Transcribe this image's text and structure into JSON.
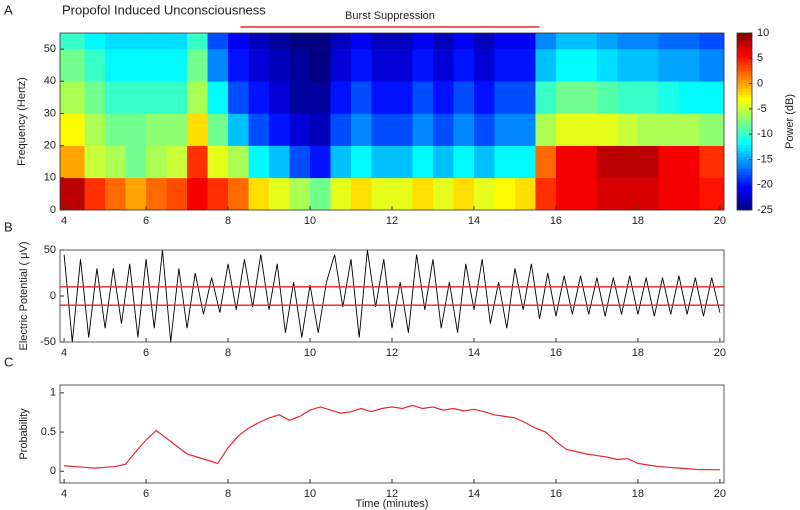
{
  "chart_data": [
    {
      "type": "heatmap",
      "panel_label": "A",
      "title": "Propofol Induced Unconsciousness",
      "annotation": {
        "text": "Burst Suppression",
        "x": [
          8.3,
          15.6
        ],
        "color": "#e8262b"
      },
      "ylabel": "Frequency (Hertz)",
      "xlim": [
        3.9,
        20.1
      ],
      "xticks": [
        4,
        6,
        8,
        10,
        12,
        14,
        16,
        18,
        20
      ],
      "ylim": [
        0,
        55
      ],
      "yticks": [
        0,
        10,
        20,
        30,
        40,
        50
      ],
      "colormap": "jet",
      "xbins": [
        3.9,
        4.5,
        5,
        5.5,
        6,
        6.5,
        7,
        7.5,
        8,
        8.5,
        9,
        9.5,
        10,
        10.5,
        11,
        11.5,
        12,
        12.5,
        13,
        13.5,
        14,
        14.5,
        15,
        15.5,
        16,
        16.5,
        17,
        17.5,
        18,
        18.5,
        19,
        19.5,
        20.1
      ],
      "ybins": [
        0,
        10,
        20,
        30,
        40,
        50,
        55
      ],
      "z": [
        [
          8,
          4,
          2,
          0,
          2,
          3,
          6,
          4,
          2,
          -2,
          -4,
          -6,
          -8,
          -4,
          -2,
          -4,
          -4,
          -2,
          -4,
          -2,
          -4,
          -3,
          -2,
          4,
          6,
          6,
          7,
          7,
          7,
          6,
          6,
          5
        ],
        [
          0,
          -5,
          -6,
          -8,
          -6,
          -5,
          4,
          -4,
          -6,
          -12,
          -14,
          -18,
          -20,
          -14,
          -12,
          -14,
          -14,
          -12,
          -14,
          -12,
          -14,
          -12,
          -12,
          2,
          6,
          6,
          8,
          8,
          8,
          6,
          6,
          4
        ],
        [
          -3,
          -6,
          -8,
          -8,
          -7,
          -7,
          -2,
          -8,
          -14,
          -18,
          -20,
          -22,
          -23,
          -18,
          -16,
          -18,
          -18,
          -16,
          -18,
          -16,
          -18,
          -16,
          -16,
          -6,
          -4,
          -4,
          -4,
          -5,
          -6,
          -6,
          -6,
          -7
        ],
        [
          -6,
          -8,
          -10,
          -10,
          -10,
          -10,
          -6,
          -12,
          -18,
          -20,
          -22,
          -24,
          -24,
          -20,
          -18,
          -20,
          -20,
          -18,
          -20,
          -18,
          -20,
          -18,
          -18,
          -10,
          -8,
          -8,
          -9,
          -10,
          -10,
          -11,
          -12,
          -12
        ],
        [
          -8,
          -10,
          -12,
          -12,
          -12,
          -12,
          -8,
          -16,
          -20,
          -22,
          -23,
          -24,
          -25,
          -22,
          -20,
          -22,
          -22,
          -20,
          -22,
          -20,
          -22,
          -20,
          -20,
          -14,
          -12,
          -12,
          -13,
          -14,
          -14,
          -15,
          -15,
          -16
        ],
        [
          -10,
          -12,
          -13,
          -13,
          -13,
          -13,
          -10,
          -18,
          -21,
          -23,
          -24,
          -25,
          -25,
          -23,
          -21,
          -23,
          -23,
          -21,
          -23,
          -21,
          -23,
          -21,
          -21,
          -16,
          -14,
          -14,
          -15,
          -16,
          -16,
          -17,
          -17,
          -18
        ]
      ],
      "colorbar": {
        "label": "Power (dB)",
        "clim": [
          -25,
          10
        ],
        "ticks": [
          10,
          5,
          0,
          -5,
          -10,
          -15,
          -20,
          -25
        ]
      }
    },
    {
      "type": "line",
      "panel_label": "B",
      "ylabel": "Electric Potential ( μV)",
      "xlim": [
        3.9,
        20.1
      ],
      "xticks": [
        4,
        6,
        8,
        10,
        12,
        14,
        16,
        18,
        20
      ],
      "ylim": [
        -50,
        50
      ],
      "yticks": [
        -50,
        0,
        50
      ],
      "thresholds": [
        10,
        -10
      ],
      "threshold_color": "#e8262b",
      "x": [
        4.0,
        4.2,
        4.4,
        4.6,
        4.8,
        5.0,
        5.2,
        5.4,
        5.6,
        5.8,
        6.0,
        6.2,
        6.4,
        6.6,
        6.8,
        7.0,
        7.2,
        7.4,
        7.6,
        7.8,
        8.0,
        8.2,
        8.4,
        8.6,
        8.8,
        9.0,
        9.2,
        9.4,
        9.6,
        9.8,
        10.0,
        10.2,
        10.4,
        10.6,
        10.8,
        11.0,
        11.2,
        11.4,
        11.6,
        11.8,
        12.0,
        12.2,
        12.4,
        12.6,
        12.8,
        13.0,
        13.2,
        13.4,
        13.6,
        13.8,
        14.0,
        14.2,
        14.4,
        14.6,
        14.8,
        15.0,
        15.2,
        15.4,
        15.6,
        15.8,
        16.0,
        16.2,
        16.4,
        16.6,
        16.8,
        17.0,
        17.2,
        17.4,
        17.6,
        17.8,
        18.0,
        18.2,
        18.4,
        18.6,
        18.8,
        19.0,
        19.2,
        19.4,
        19.6,
        19.8,
        20.0
      ],
      "series": [
        {
          "color": "#000000",
          "values": [
            45,
            -50,
            40,
            -45,
            30,
            -35,
            30,
            -30,
            35,
            -45,
            40,
            -35,
            50,
            -50,
            30,
            -35,
            25,
            -20,
            20,
            -18,
            35,
            -15,
            40,
            -12,
            45,
            -15,
            35,
            -40,
            15,
            -45,
            12,
            -40,
            15,
            45,
            -12,
            40,
            -45,
            50,
            -12,
            40,
            -35,
            15,
            -40,
            45,
            -15,
            40,
            -35,
            15,
            -40,
            35,
            -15,
            40,
            -30,
            15,
            -35,
            30,
            -15,
            35,
            -25,
            25,
            -22,
            22,
            -20,
            22,
            -20,
            20,
            -22,
            20,
            -20,
            22,
            -20,
            20,
            -22,
            20,
            -20,
            22,
            -20,
            20,
            -22,
            20,
            -18
          ]
        }
      ]
    },
    {
      "type": "line",
      "panel_label": "C",
      "ylabel": "Probability",
      "xlabel": "Time (minutes)",
      "xlim": [
        3.9,
        20.1
      ],
      "xticks": [
        4,
        6,
        8,
        10,
        12,
        14,
        16,
        18,
        20
      ],
      "ylim": [
        -0.15,
        1.1
      ],
      "yticks": [
        0,
        0.5,
        1
      ],
      "x": [
        4,
        4.25,
        4.5,
        4.75,
        5,
        5.25,
        5.5,
        5.75,
        6,
        6.25,
        6.5,
        6.75,
        7,
        7.25,
        7.5,
        7.75,
        8,
        8.25,
        8.5,
        8.75,
        9,
        9.25,
        9.5,
        9.75,
        10,
        10.25,
        10.5,
        10.75,
        11,
        11.25,
        11.5,
        11.75,
        12,
        12.25,
        12.5,
        12.75,
        13,
        13.25,
        13.5,
        13.75,
        14,
        14.25,
        14.5,
        14.75,
        15,
        15.25,
        15.5,
        15.75,
        16,
        16.25,
        16.5,
        16.75,
        17,
        17.25,
        17.5,
        17.75,
        18,
        18.25,
        18.5,
        18.75,
        19,
        19.25,
        19.5,
        19.75,
        20
      ],
      "series": [
        {
          "color": "#e8262b",
          "values": [
            0.07,
            0.06,
            0.05,
            0.04,
            0.05,
            0.06,
            0.09,
            0.25,
            0.4,
            0.52,
            0.42,
            0.32,
            0.22,
            0.18,
            0.14,
            0.1,
            0.3,
            0.45,
            0.55,
            0.62,
            0.68,
            0.72,
            0.65,
            0.7,
            0.78,
            0.82,
            0.78,
            0.74,
            0.76,
            0.8,
            0.76,
            0.8,
            0.82,
            0.8,
            0.84,
            0.8,
            0.82,
            0.78,
            0.8,
            0.77,
            0.79,
            0.76,
            0.72,
            0.7,
            0.68,
            0.62,
            0.55,
            0.5,
            0.38,
            0.28,
            0.25,
            0.22,
            0.2,
            0.18,
            0.15,
            0.16,
            0.1,
            0.08,
            0.06,
            0.05,
            0.04,
            0.03,
            0.02,
            0.02,
            0.02
          ]
        }
      ]
    }
  ]
}
